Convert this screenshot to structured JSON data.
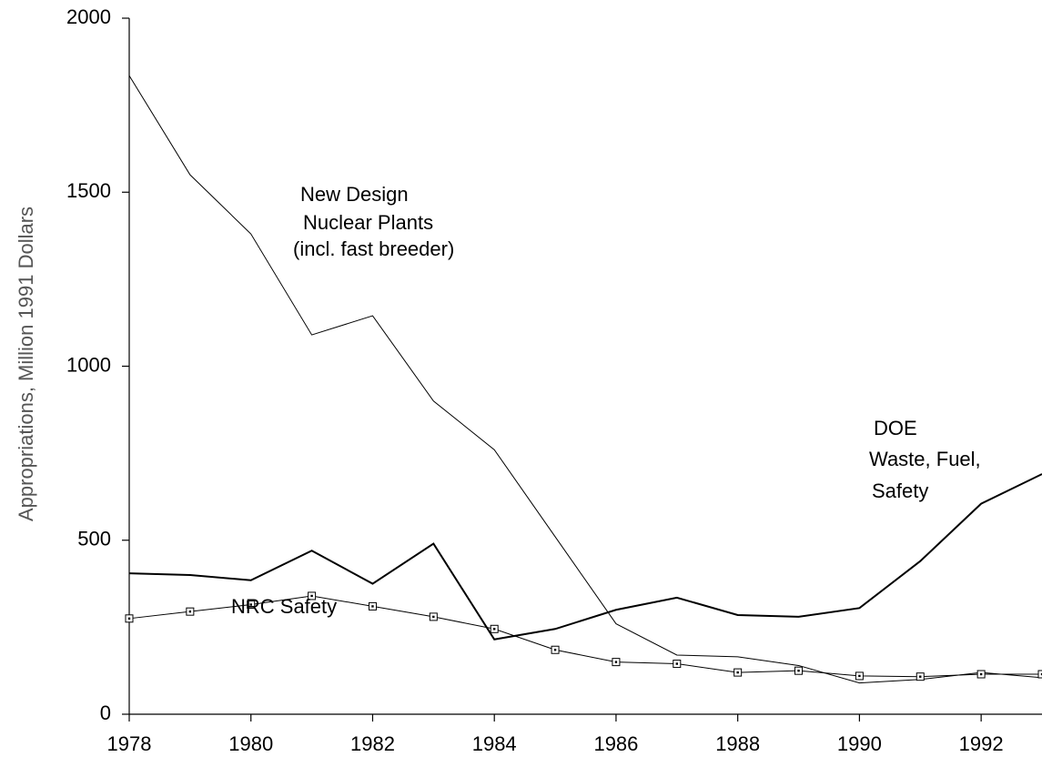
{
  "chart_data": {
    "type": "line",
    "y_label": "Appropriations, Million 1991 Dollars",
    "x": [
      1978,
      1979,
      1980,
      1981,
      1982,
      1983,
      1984,
      1985,
      1986,
      1987,
      1988,
      1989,
      1990,
      1991,
      1992,
      1993
    ],
    "series": [
      {
        "name": "New Design Nuclear Plants (incl. fast breeder)",
        "color": "#000000",
        "marker": "none",
        "values": [
          1835,
          1550,
          1380,
          1090,
          1145,
          900,
          760,
          510,
          260,
          170,
          165,
          140,
          90,
          100,
          120,
          105
        ]
      },
      {
        "name": "DOE Waste, Fuel, Safety",
        "color": "#000000",
        "marker": "none",
        "values": [
          405,
          400,
          385,
          470,
          375,
          490,
          215,
          245,
          300,
          335,
          285,
          280,
          305,
          440,
          605,
          690
        ]
      },
      {
        "name": "NRC Safety",
        "color": "#000000",
        "marker": "square",
        "values": [
          275,
          295,
          315,
          340,
          310,
          280,
          245,
          185,
          150,
          145,
          120,
          125,
          110,
          108,
          115,
          115
        ]
      }
    ],
    "annotations": [
      [
        "New Design",
        "Nuclear Plants",
        "(incl. fast breeder)"
      ],
      [
        "DOE",
        "Waste, Fuel,",
        "Safety"
      ],
      [
        "NRC Safety"
      ]
    ],
    "xlim": [
      1978,
      1993
    ],
    "xticks": [
      1978,
      1980,
      1982,
      1984,
      1986,
      1988,
      1990,
      1992
    ],
    "ylim": [
      0,
      2000
    ],
    "yticks": [
      0,
      500,
      1000,
      1500,
      2000
    ],
    "grid": false,
    "legend": false
  }
}
